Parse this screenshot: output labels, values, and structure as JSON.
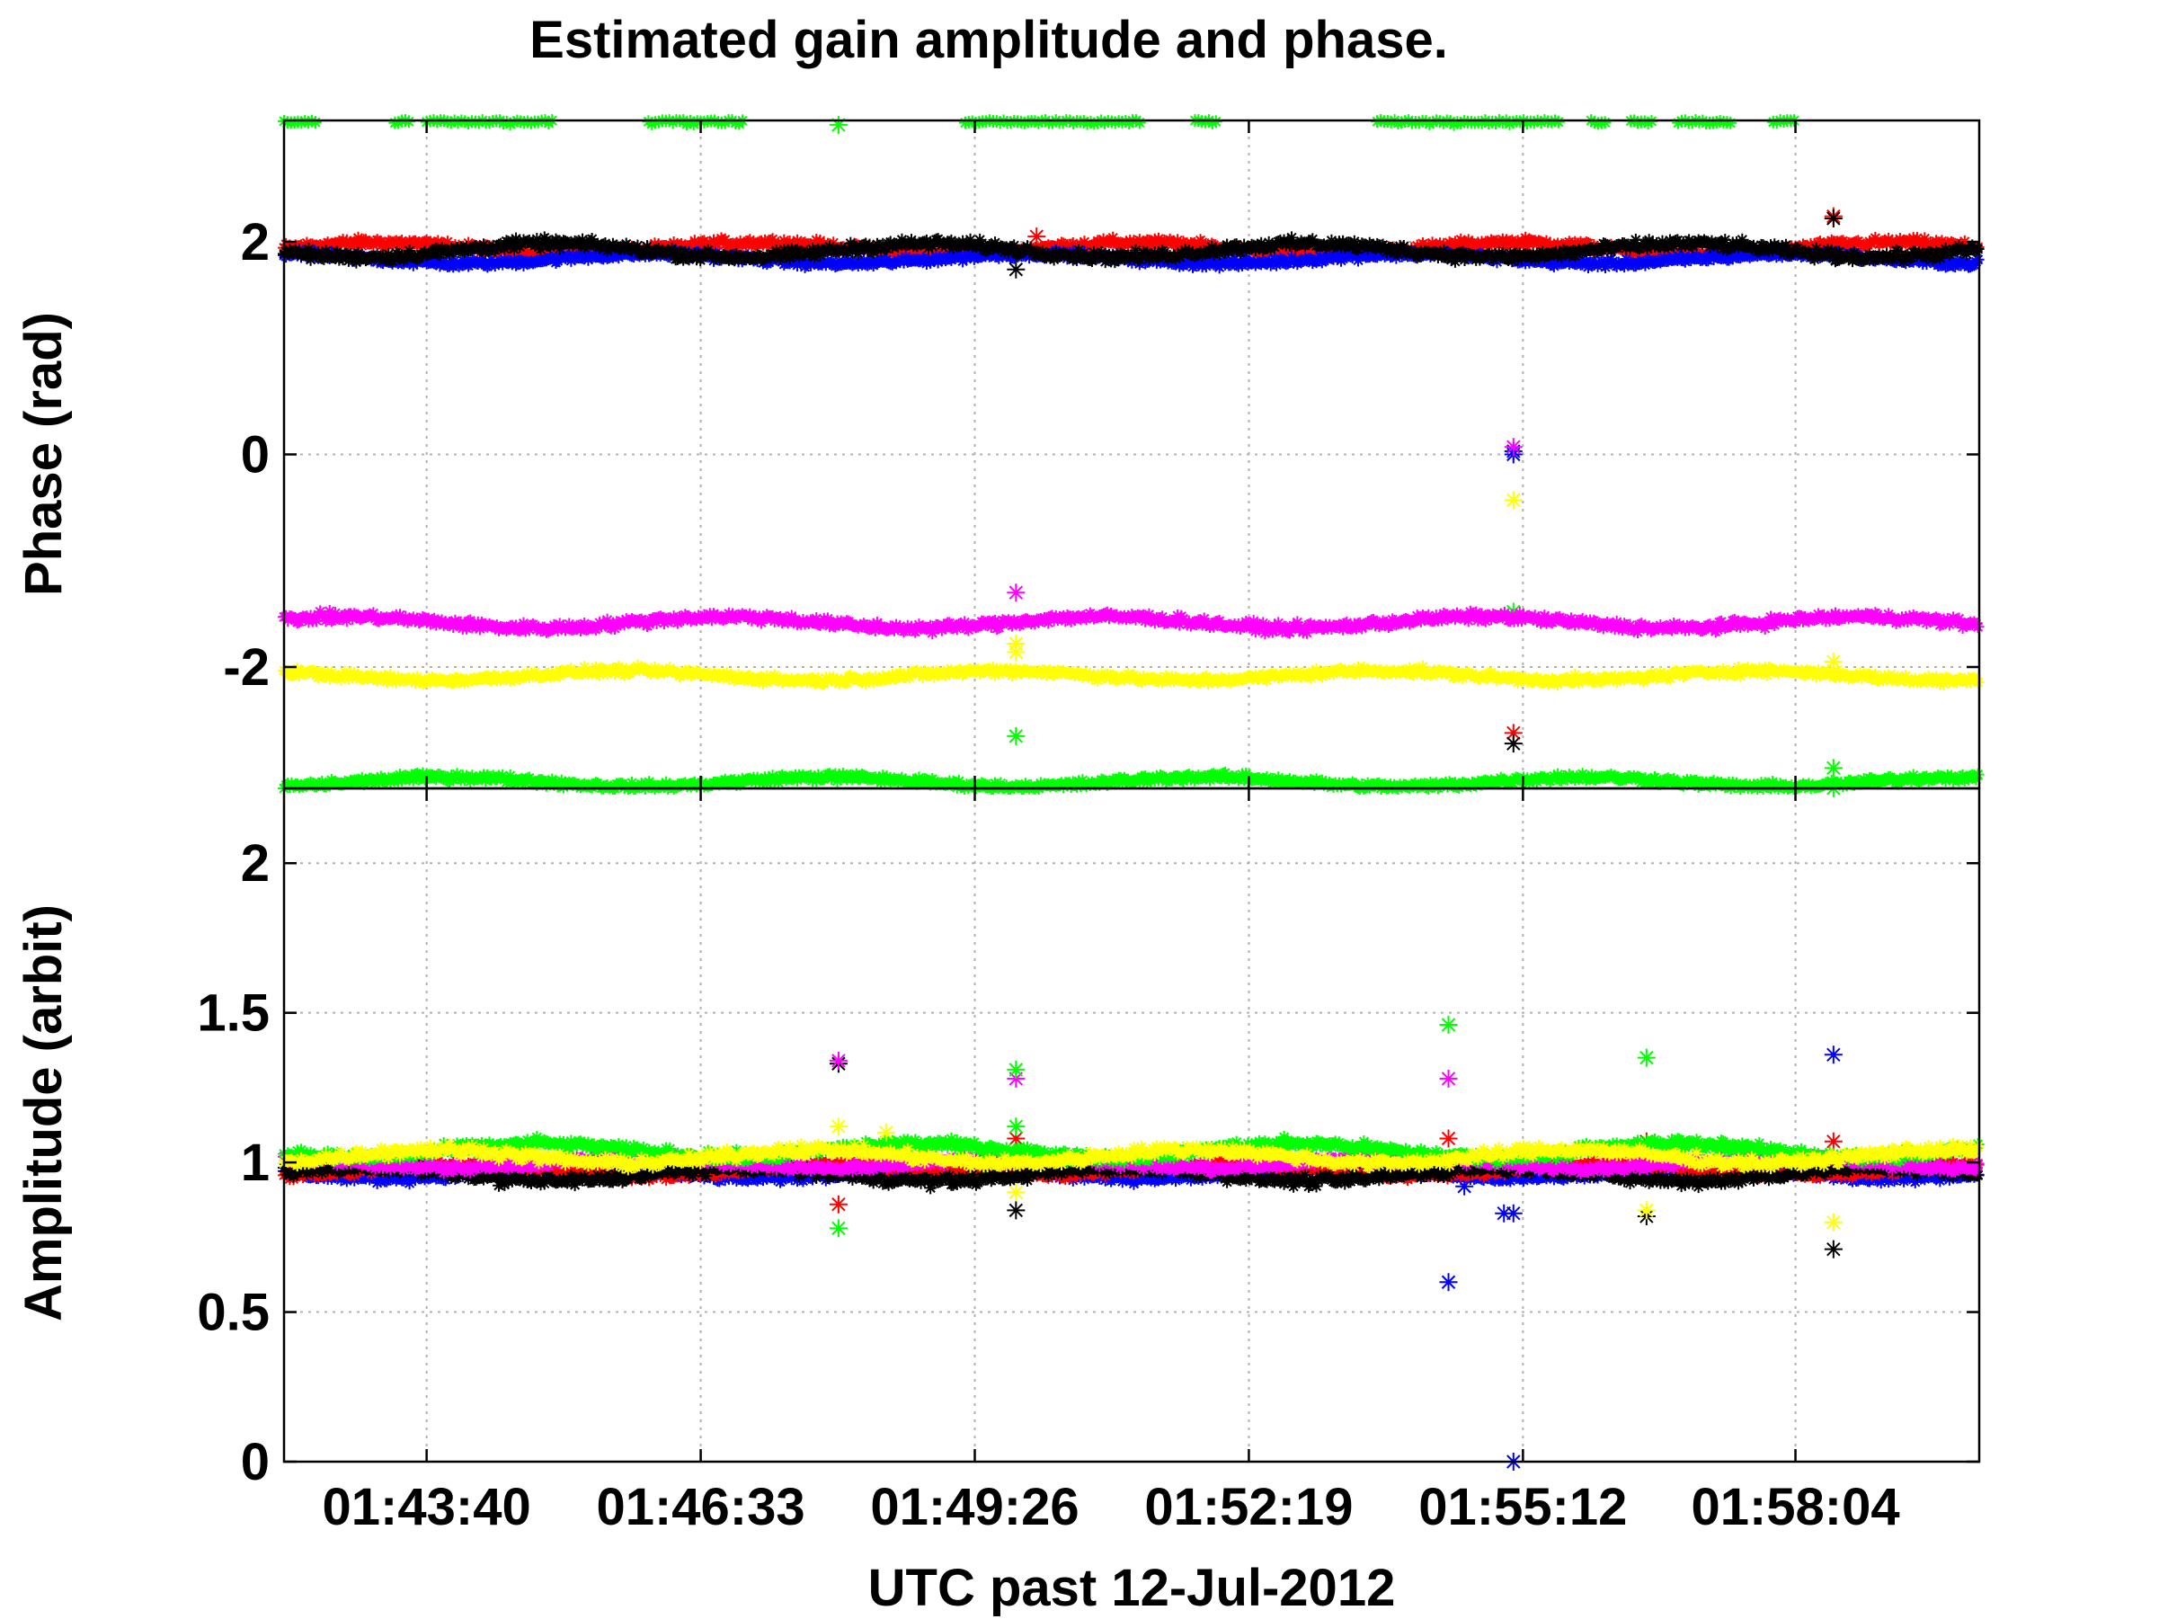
{
  "colors": {
    "background": "#ffffff",
    "red": "#ff0000",
    "blue": "#0000ff",
    "black": "#000000",
    "green": "#00ff00",
    "magenta": "#ff00ff",
    "yellow": "#ffff00",
    "grid": "#b0b0b0"
  },
  "chart_data": [
    {
      "type": "scatter",
      "title": "Estimated gain amplitude and phase.",
      "xlabel": "",
      "ylabel": "Phase (rad)",
      "marker": "asterisk",
      "grid": true,
      "x_range": [
        "01:42:10",
        "02:00:00"
      ],
      "xlim": [
        0,
        1070
      ],
      "ylim": [
        -3.1416,
        3.1416
      ],
      "x_ticks": [],
      "y_ticks": [
        -2,
        0,
        2
      ],
      "y_tick_labels": [
        "-2",
        "0",
        "2"
      ],
      "x_grid_times": [
        "01:43:40",
        "01:46:33",
        "01:49:26",
        "01:52:19",
        "01:55:12",
        "01:58:04"
      ],
      "series": [
        {
          "color": "red",
          "mean": 1.94,
          "spread": 0.06,
          "outliers": [
            [
              "01:50:05",
              2.05
            ],
            [
              "01:55:06",
              -2.62
            ],
            [
              "01:58:28",
              2.24
            ]
          ]
        },
        {
          "color": "blue",
          "mean": 1.84,
          "spread": 0.05,
          "outliers": [
            [
              "01:55:06",
              0.0
            ],
            [
              "01:55:06",
              0.03
            ]
          ]
        },
        {
          "color": "black",
          "mean": 1.92,
          "spread": 0.07,
          "outliers": [
            [
              "01:49:52",
              1.74
            ],
            [
              "01:55:06",
              -2.72
            ],
            [
              "01:58:28",
              2.22
            ]
          ]
        },
        {
          "color": "green",
          "mean": -3.08,
          "spread": 0.05,
          "outliers": [
            [
              "01:49:52",
              -2.65
            ],
            [
              "01:55:06",
              -1.48
            ],
            [
              "01:58:28",
              -2.95
            ],
            [
              "01:58:28",
              -3.14
            ]
          ]
        },
        {
          "color": "magenta",
          "mean": -1.58,
          "spread": 0.06,
          "outliers": [
            [
              "01:49:52",
              -1.3
            ],
            [
              "01:55:06",
              0.07
            ]
          ]
        },
        {
          "color": "yellow",
          "mean": -2.08,
          "spread": 0.05,
          "outliers": [
            [
              "01:49:52",
              -1.78
            ],
            [
              "01:49:52",
              -1.86
            ],
            [
              "01:55:06",
              -0.43
            ],
            [
              "01:58:28",
              -1.95
            ]
          ]
        },
        {
          "color": "green",
          "mean": 3.13,
          "spread": 0.03,
          "note_wrap": "phase wraps near +pi",
          "time_ranges": [
            [
              "01:42:10",
              "01:42:30"
            ],
            [
              "01:43:20",
              "01:43:30"
            ],
            [
              "01:43:40",
              "01:45:00"
            ],
            [
              "01:46:00",
              "01:47:00"
            ],
            [
              "01:49:20",
              "01:51:10"
            ],
            [
              "01:51:45",
              "01:52:00"
            ],
            [
              "01:53:40",
              "01:55:35"
            ],
            [
              "01:55:55",
              "01:56:05"
            ],
            [
              "01:56:20",
              "01:56:35"
            ],
            [
              "01:56:50",
              "01:57:25"
            ],
            [
              "01:57:50",
              "01:58:05"
            ]
          ],
          "outliers": [
            [
              "01:48:00",
              3.1
            ]
          ]
        }
      ]
    },
    {
      "type": "scatter",
      "title": "",
      "xlabel": "UTC past 12-Jul-2012",
      "ylabel": "Amplitude (arbit)",
      "marker": "asterisk",
      "grid": true,
      "x_range": [
        "01:42:10",
        "02:00:00"
      ],
      "xlim": [
        0,
        1070
      ],
      "ylim": [
        0,
        2.25
      ],
      "x_ticks": [
        "01:43:40",
        "01:46:33",
        "01:49:26",
        "01:52:19",
        "01:55:12",
        "01:58:04"
      ],
      "y_ticks": [
        0,
        0.5,
        1,
        1.5,
        2
      ],
      "y_tick_labels": [
        "0",
        "0.5",
        "1",
        "1.5",
        "2"
      ],
      "series": [
        {
          "color": "blue",
          "mean": 0.965,
          "spread": 0.02,
          "outliers": [
            [
              "01:54:25",
              0.6
            ],
            [
              "01:55:06",
              0.0
            ],
            [
              "01:55:00",
              0.83
            ],
            [
              "01:55:06",
              0.83
            ],
            [
              "01:54:35",
              0.92
            ],
            [
              "01:58:28",
              1.36
            ]
          ]
        },
        {
          "color": "red",
          "mean": 0.975,
          "spread": 0.02,
          "outliers": [
            [
              "01:48:00",
              0.86
            ],
            [
              "01:49:52",
              1.08
            ],
            [
              "01:54:25",
              1.08
            ],
            [
              "01:56:30",
              1.07
            ],
            [
              "01:58:28",
              1.07
            ]
          ]
        },
        {
          "color": "black",
          "mean": 0.96,
          "spread": 0.025,
          "outliers": [
            [
              "01:48:00",
              1.33
            ],
            [
              "01:49:52",
              0.84
            ],
            [
              "01:56:30",
              0.82
            ],
            [
              "01:58:28",
              0.71
            ]
          ]
        },
        {
          "color": "magenta",
          "mean": 1.0,
          "spread": 0.02,
          "outliers": [
            [
              "01:48:00",
              1.34
            ],
            [
              "01:49:52",
              1.28
            ],
            [
              "01:54:25",
              1.28
            ]
          ]
        },
        {
          "color": "green",
          "mean": 1.04,
          "spread": 0.025,
          "outliers": [
            [
              "01:48:00",
              0.78
            ],
            [
              "01:49:52",
              1.31
            ],
            [
              "01:49:52",
              1.12
            ],
            [
              "01:54:25",
              1.46
            ],
            [
              "01:56:30",
              1.35
            ]
          ]
        },
        {
          "color": "yellow",
          "mean": 1.02,
          "spread": 0.025,
          "outliers": [
            [
              "01:48:00",
              1.12
            ],
            [
              "01:48:30",
              1.1
            ],
            [
              "01:49:52",
              0.9
            ],
            [
              "01:56:30",
              0.84
            ],
            [
              "01:58:28",
              0.8
            ]
          ]
        }
      ]
    }
  ]
}
